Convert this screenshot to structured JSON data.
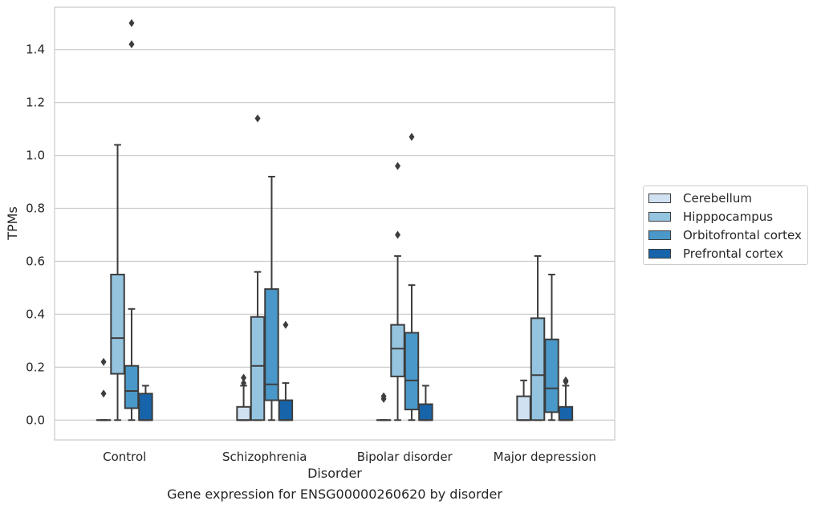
{
  "chart_data": {
    "type": "box",
    "xlabel": "Disorder",
    "ylabel": "TPMs",
    "caption": "Gene expression for ENSG00000260620 by disorder",
    "categories": [
      "Control",
      "Schizophrenia",
      "Bipolar disorder",
      "Major depression"
    ],
    "ylim": [
      -0.075,
      1.56
    ],
    "yticks": [
      0.0,
      0.2,
      0.4,
      0.6,
      0.8,
      1.0,
      1.2,
      1.4
    ],
    "ytick_labels": [
      "0.0",
      "0.2",
      "0.4",
      "0.6",
      "0.8",
      "1.0",
      "1.2",
      "1.4"
    ],
    "grid": "horizontal",
    "legend_position": "right",
    "series": [
      {
        "name": "Cerebellum",
        "color": "#d0e1f2",
        "boxes": [
          {
            "whislo": 0.0,
            "q1": 0.0,
            "med": 0.0,
            "q3": 0.0,
            "whishi": 0.0,
            "fliers": [
              0.1,
              0.22
            ]
          },
          {
            "whislo": 0.0,
            "q1": 0.0,
            "med": 0.0,
            "q3": 0.05,
            "whishi": 0.13,
            "fliers": [
              0.14,
              0.16
            ]
          },
          {
            "whislo": 0.0,
            "q1": 0.0,
            "med": 0.0,
            "q3": 0.0,
            "whishi": 0.0,
            "fliers": [
              0.08,
              0.09
            ]
          },
          {
            "whislo": 0.0,
            "q1": 0.0,
            "med": 0.0,
            "q3": 0.09,
            "whishi": 0.15,
            "fliers": []
          }
        ]
      },
      {
        "name": "Hipppocampus",
        "color": "#94c4df",
        "boxes": [
          {
            "whislo": 0.0,
            "q1": 0.175,
            "med": 0.31,
            "q3": 0.55,
            "whishi": 1.04,
            "fliers": []
          },
          {
            "whislo": 0.0,
            "q1": 0.0,
            "med": 0.205,
            "q3": 0.39,
            "whishi": 0.56,
            "fliers": [
              1.14
            ]
          },
          {
            "whislo": 0.0,
            "q1": 0.165,
            "med": 0.27,
            "q3": 0.36,
            "whishi": 0.62,
            "fliers": [
              0.7,
              0.96
            ]
          },
          {
            "whislo": 0.0,
            "q1": 0.0,
            "med": 0.17,
            "q3": 0.385,
            "whishi": 0.62,
            "fliers": []
          }
        ]
      },
      {
        "name": "Orbitofrontal cortex",
        "color": "#4a98c9",
        "boxes": [
          {
            "whislo": 0.0,
            "q1": 0.045,
            "med": 0.11,
            "q3": 0.205,
            "whishi": 0.42,
            "fliers": [
              1.42,
              1.5
            ]
          },
          {
            "whislo": 0.0,
            "q1": 0.075,
            "med": 0.135,
            "q3": 0.495,
            "whishi": 0.92,
            "fliers": []
          },
          {
            "whislo": 0.0,
            "q1": 0.04,
            "med": 0.15,
            "q3": 0.33,
            "whishi": 0.51,
            "fliers": [
              1.07
            ]
          },
          {
            "whislo": 0.0,
            "q1": 0.03,
            "med": 0.12,
            "q3": 0.305,
            "whishi": 0.55,
            "fliers": []
          }
        ]
      },
      {
        "name": "Prefrontal cortex",
        "color": "#1764ab",
        "boxes": [
          {
            "whislo": 0.0,
            "q1": 0.0,
            "med": 0.0,
            "q3": 0.1,
            "whishi": 0.13,
            "fliers": []
          },
          {
            "whislo": 0.0,
            "q1": 0.0,
            "med": 0.0,
            "q3": 0.075,
            "whishi": 0.14,
            "fliers": [
              0.36
            ]
          },
          {
            "whislo": 0.0,
            "q1": 0.0,
            "med": 0.0,
            "q3": 0.06,
            "whishi": 0.13,
            "fliers": []
          },
          {
            "whislo": 0.0,
            "q1": 0.0,
            "med": 0.0,
            "q3": 0.05,
            "whishi": 0.13,
            "fliers": [
              0.145,
              0.15
            ]
          }
        ]
      }
    ]
  }
}
